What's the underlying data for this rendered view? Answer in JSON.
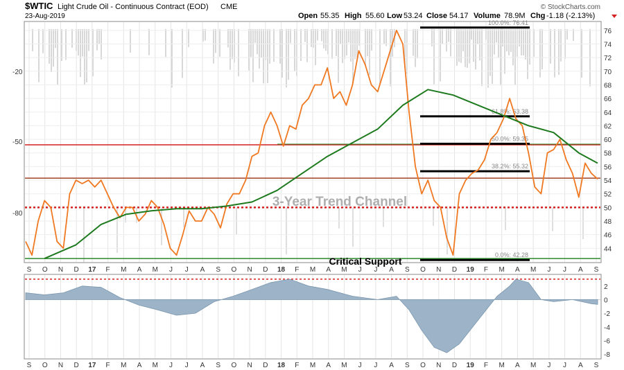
{
  "header": {
    "symbol": "$WTIC",
    "name": "Light Crude Oil - Continuous Contract (EOD)",
    "exchange": "CME",
    "date": "23-Aug-2019",
    "open_label": "Open",
    "open": "55.35",
    "high_label": "High",
    "high": "55.60",
    "low_label": "Low",
    "low": "53.24",
    "close_label": "Close",
    "close": "54.17",
    "volume_label": "Volume",
    "volume": "78.9M",
    "chg_label": "Chg",
    "chg": "-1.18 (-2.13%)",
    "brand": "© StockCharts.com"
  },
  "colors": {
    "price": "#f07820",
    "ma": "#1e7a1e",
    "resistance": "#d42020",
    "green_level": "#2a8a2a",
    "bg_shading": "#c8c8c8",
    "macd_fill": "#9db4c8",
    "axis_text": "#333333"
  },
  "chart_data": [
    {
      "type": "line",
      "panel": "price",
      "y_axis_right": {
        "ticks": [
          44,
          46,
          48,
          50,
          52,
          54,
          56,
          58,
          60,
          62,
          64,
          66,
          68,
          70,
          72,
          74,
          76
        ],
        "range": [
          42,
          77
        ]
      },
      "y_axis_left": {
        "ticks": [
          "-20",
          "-50",
          "-80"
        ]
      },
      "x_labels": [
        "S",
        "O",
        "N",
        "D",
        "17",
        "F",
        "M",
        "A",
        "M",
        "J",
        "J",
        "A",
        "S",
        "O",
        "N",
        "D",
        "18",
        "F",
        "M",
        "A",
        "M",
        "J",
        "J",
        "A",
        "S",
        "O",
        "N",
        "D",
        "19",
        "F",
        "M",
        "A",
        "M",
        "J",
        "J",
        "A",
        "S"
      ],
      "year_labels": [
        "17",
        "18",
        "19"
      ],
      "series": [
        {
          "key": "price",
          "values": [
            [
              0,
              45.0
            ],
            [
              1,
              43.0
            ],
            [
              2,
              48.0
            ],
            [
              3,
              51.0
            ],
            [
              4,
              50.0
            ],
            [
              5,
              45.0
            ],
            [
              6,
              44.0
            ],
            [
              7,
              52.0
            ],
            [
              8,
              54.0
            ],
            [
              9,
              53.5
            ],
            [
              10,
              54.0
            ],
            [
              11,
              53.0
            ],
            [
              12,
              54.0
            ],
            [
              13,
              52.0
            ],
            [
              14,
              50.0
            ],
            [
              15,
              48.5
            ],
            [
              16,
              50.0
            ],
            [
              17,
              50.0
            ],
            [
              18,
              48.0
            ],
            [
              19,
              49.0
            ],
            [
              20,
              51.0
            ],
            [
              21,
              50.0
            ],
            [
              22,
              47.5
            ],
            [
              23,
              44.0
            ],
            [
              24,
              43.0
            ],
            [
              25,
              46.0
            ],
            [
              26,
              49.5
            ],
            [
              27,
              48.0
            ],
            [
              28,
              48.0
            ],
            [
              29,
              50.0
            ],
            [
              30,
              49.0
            ],
            [
              31,
              47.0
            ],
            [
              32,
              50.5
            ],
            [
              33,
              52.0
            ],
            [
              34,
              52.0
            ],
            [
              35,
              54.0
            ],
            [
              36,
              57.5
            ],
            [
              37,
              58.0
            ],
            [
              38,
              62.0
            ],
            [
              39,
              64.0
            ],
            [
              40,
              62.0
            ],
            [
              41,
              59.0
            ],
            [
              42,
              62.0
            ],
            [
              43,
              61.5
            ],
            [
              44,
              65.0
            ],
            [
              45,
              66.0
            ],
            [
              46,
              68.0
            ],
            [
              47,
              68.0
            ],
            [
              48,
              70.5
            ],
            [
              49,
              66.0
            ],
            [
              50,
              67.0
            ],
            [
              51,
              65.0
            ],
            [
              52,
              68.0
            ],
            [
              53,
              73.0
            ],
            [
              54,
              71.0
            ],
            [
              55,
              68.0
            ],
            [
              56,
              67.0
            ],
            [
              57,
              70.0
            ],
            [
              58,
              73.0
            ],
            [
              59,
              76.0
            ],
            [
              60,
              74.0
            ],
            [
              61,
              64.0
            ],
            [
              62,
              56.0
            ],
            [
              63,
              52.0
            ],
            [
              64,
              54.0
            ],
            [
              65,
              51.0
            ],
            [
              66,
              50.0
            ],
            [
              67,
              45.5
            ],
            [
              68,
              43.0
            ],
            [
              69,
              52.0
            ],
            [
              70,
              54.0
            ],
            [
              71,
              55.0
            ],
            [
              72,
              55.5
            ],
            [
              73,
              57.0
            ],
            [
              74,
              60.0
            ],
            [
              75,
              61.0
            ],
            [
              76,
              63.0
            ],
            [
              77,
              66.0
            ],
            [
              78,
              63.0
            ],
            [
              79,
              62.0
            ],
            [
              80,
              58.0
            ],
            [
              81,
              53.0
            ],
            [
              82,
              52.0
            ],
            [
              83,
              58.0
            ],
            [
              84,
              58.5
            ],
            [
              85,
              60.0
            ],
            [
              86,
              57.0
            ],
            [
              87,
              55.0
            ],
            [
              88,
              51.5
            ],
            [
              89,
              56.5
            ],
            [
              90,
              55.0
            ],
            [
              91,
              54.17
            ]
          ]
        },
        {
          "key": "ma",
          "values": [
            [
              3,
              42.5
            ],
            [
              8,
              44.5
            ],
            [
              12,
              47.5
            ],
            [
              16,
              49.0
            ],
            [
              20,
              49.5
            ],
            [
              24,
              49.8
            ],
            [
              28,
              49.8
            ],
            [
              32,
              50.2
            ],
            [
              36,
              50.8
            ],
            [
              40,
              52.5
            ],
            [
              44,
              55.0
            ],
            [
              48,
              57.5
            ],
            [
              52,
              59.5
            ],
            [
              56,
              61.5
            ],
            [
              60,
              65.0
            ],
            [
              64,
              67.3
            ],
            [
              68,
              66.5
            ],
            [
              72,
              65.0
            ],
            [
              76,
              63.5
            ],
            [
              80,
              62.0
            ],
            [
              84,
              61.0
            ],
            [
              88,
              58.0
            ],
            [
              91,
              56.5
            ]
          ]
        }
      ],
      "levels": [
        {
          "key": "fib_100",
          "label": "100.0%: 76.41",
          "value": 76.41
        },
        {
          "key": "fib_618",
          "label": "61.8%: 63.38",
          "value": 63.38
        },
        {
          "key": "fib_500",
          "label": "50.0%: 59.35",
          "value": 59.35
        },
        {
          "key": "fib_382",
          "label": "38.2%: 55.32",
          "value": 55.32
        },
        {
          "key": "fib_0",
          "label": "0.0%: 42.28",
          "value": 42.28
        },
        {
          "key": "red_upper",
          "value": 59.2
        },
        {
          "key": "red_lower",
          "value": 54.3
        },
        {
          "key": "red_dotted",
          "value": 50.0
        },
        {
          "key": "green_support",
          "value": 42.5
        }
      ],
      "annotations": {
        "channel": "3-Year Trend Channel",
        "support": "Critical Support"
      }
    },
    {
      "type": "area",
      "panel": "oscillator",
      "y_axis_right": {
        "ticks": [
          2,
          0,
          -2,
          -4,
          -6,
          -8
        ],
        "range": [
          -8.5,
          3.5
        ]
      },
      "reference_dotted": 3.0,
      "values": [
        [
          0,
          1.0
        ],
        [
          3,
          0.7
        ],
        [
          6,
          1.0
        ],
        [
          9,
          2.0
        ],
        [
          12,
          1.8
        ],
        [
          15,
          0.3
        ],
        [
          18,
          -0.8
        ],
        [
          21,
          -1.5
        ],
        [
          24,
          -2.3
        ],
        [
          27,
          -2.0
        ],
        [
          30,
          -0.3
        ],
        [
          33,
          0.5
        ],
        [
          36,
          1.5
        ],
        [
          39,
          2.5
        ],
        [
          42,
          3.0
        ],
        [
          45,
          2.0
        ],
        [
          48,
          1.5
        ],
        [
          52,
          0.5
        ],
        [
          56,
          0.0
        ],
        [
          59,
          0.5
        ],
        [
          61,
          -1.5
        ],
        [
          63,
          -4.5
        ],
        [
          65,
          -7.0
        ],
        [
          67,
          -7.8
        ],
        [
          69,
          -6.5
        ],
        [
          72,
          -3.0
        ],
        [
          75,
          0.5
        ],
        [
          77,
          2.0
        ],
        [
          78,
          3.0
        ],
        [
          80,
          2.5
        ],
        [
          82,
          0.0
        ],
        [
          84,
          -0.3
        ],
        [
          87,
          0.0
        ],
        [
          90,
          -0.6
        ],
        [
          91,
          -0.7
        ]
      ]
    }
  ]
}
